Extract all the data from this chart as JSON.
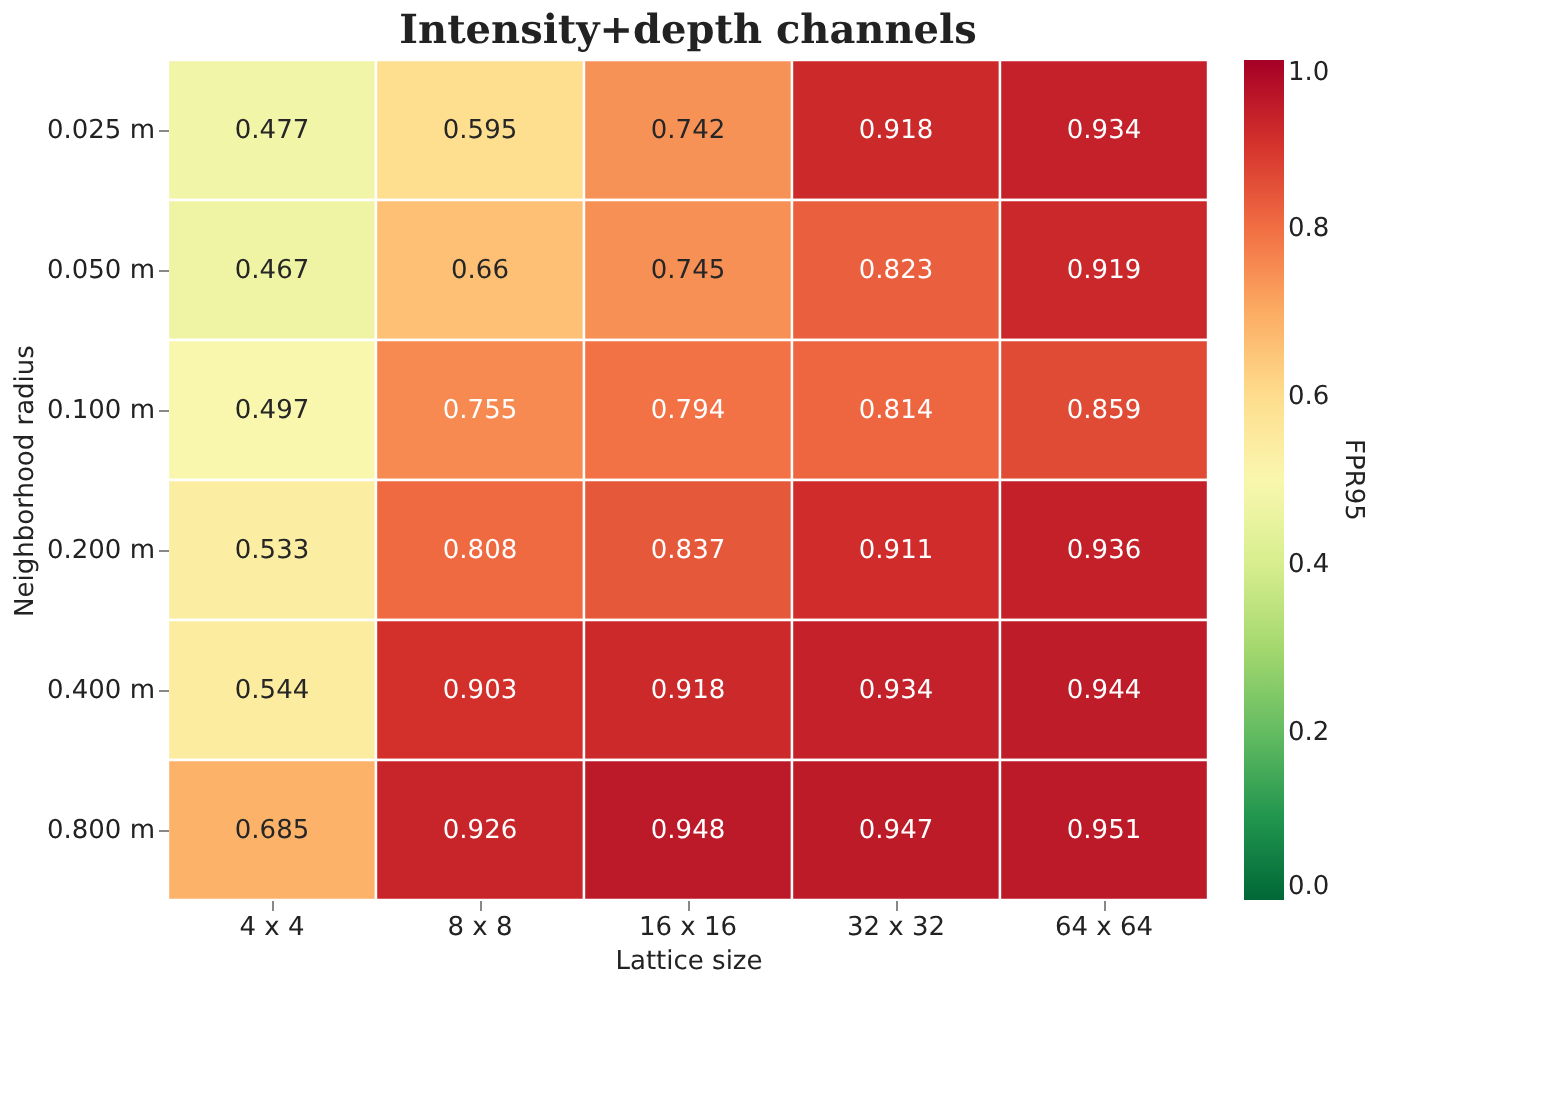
{
  "chart_data": {
    "type": "heatmap",
    "title": "Intensity+depth channels",
    "xlabel": "Lattice size",
    "ylabel": "Neighborhood radius",
    "clabel": "FPR95",
    "categories": [
      "4 x 4",
      "8 x 8",
      "16 x 16",
      "32 x 32",
      "64 x 64"
    ],
    "y_categories": [
      "0.025 m",
      "0.050 m",
      "0.100 m",
      "0.200 m",
      "0.400 m",
      "0.800 m"
    ],
    "cells": [
      [
        0.477,
        0.595,
        0.742,
        0.918,
        0.934
      ],
      [
        0.467,
        0.66,
        0.745,
        0.823,
        0.919
      ],
      [
        0.497,
        0.755,
        0.794,
        0.814,
        0.859
      ],
      [
        0.533,
        0.808,
        0.837,
        0.911,
        0.936
      ],
      [
        0.544,
        0.903,
        0.918,
        0.934,
        0.944
      ],
      [
        0.685,
        0.926,
        0.948,
        0.947,
        0.951
      ]
    ],
    "clim": [
      0,
      1
    ],
    "cticks": [
      {
        "value": 0,
        "label": "0.0"
      },
      {
        "value": 0.2,
        "label": "0.2"
      },
      {
        "value": 0.4,
        "label": "0.4"
      },
      {
        "value": 0.6,
        "label": "0.6"
      },
      {
        "value": 0.8,
        "label": "0.8"
      },
      {
        "value": 1,
        "label": "1.0"
      }
    ],
    "data_labels": true
  }
}
